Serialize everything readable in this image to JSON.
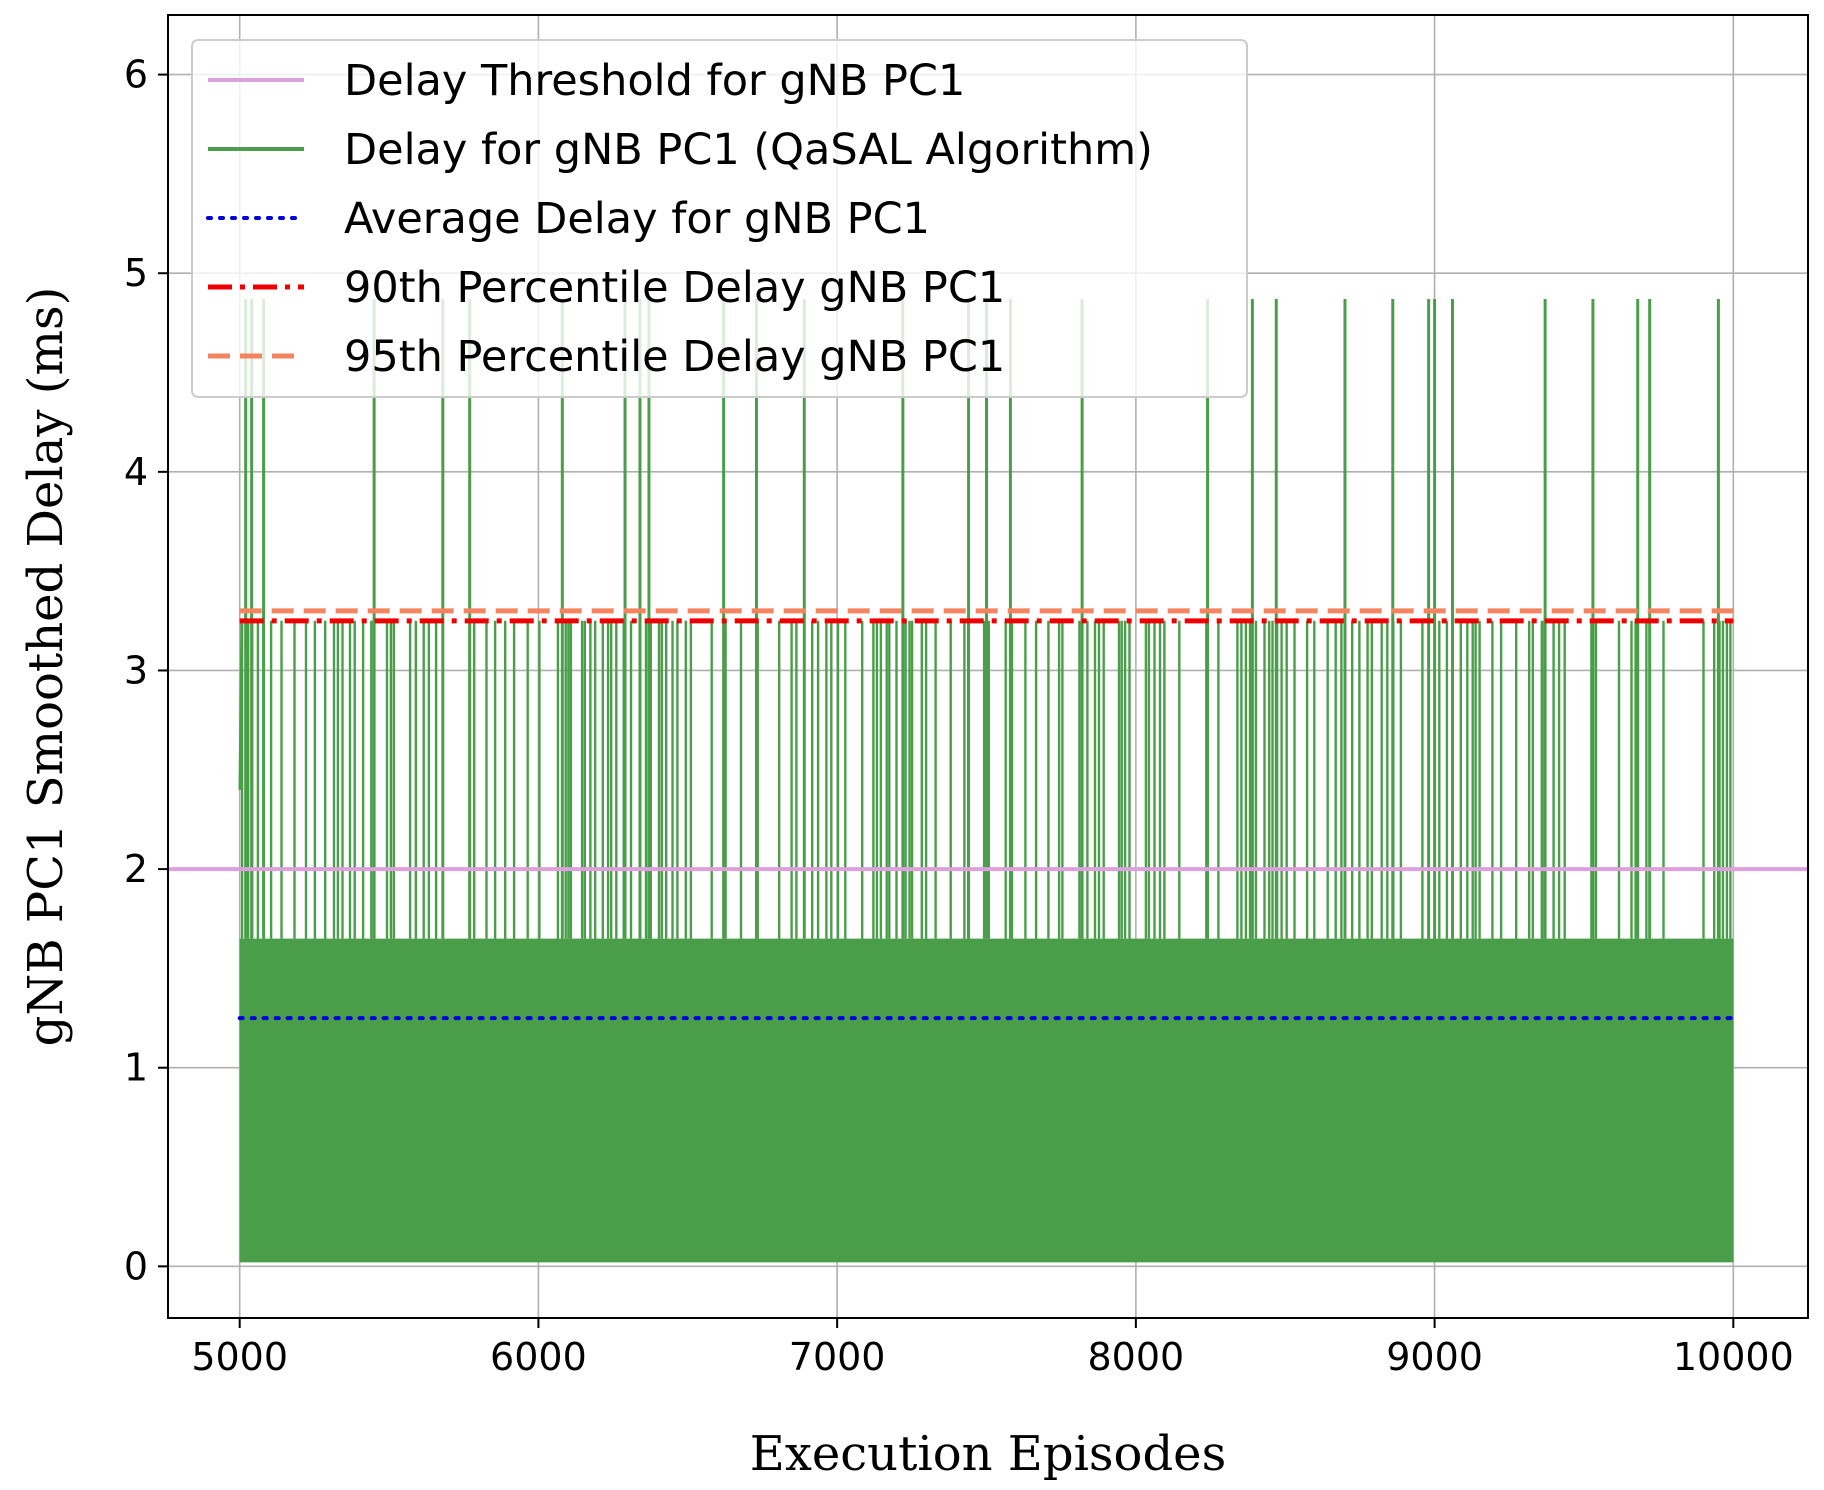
{
  "chart_data": {
    "type": "line",
    "xlabel": "Execution Episodes",
    "ylabel": "gNB PC1 Smoothed Delay (ms)",
    "xlim": [
      4760,
      10250
    ],
    "ylim": [
      -0.26,
      6.3
    ],
    "xticks": [
      5000,
      6000,
      7000,
      8000,
      9000,
      10000
    ],
    "yticks": [
      0,
      1,
      2,
      3,
      4,
      5,
      6
    ],
    "grid": true,
    "legend_position": "top-left",
    "series": [
      {
        "name": "Delay Threshold for gNB PC1",
        "style": "solid",
        "color": "#dda0dd",
        "x": [
          4760,
          10250
        ],
        "y": [
          2,
          2
        ]
      },
      {
        "name": "Delay for gNB PC1 (QaSAL Algorithm)",
        "style": "solid",
        "color": "#4a9e4a",
        "x_range": [
          5000,
          10000
        ],
        "low_band": [
          0.02,
          1.65
        ],
        "mid_level": 3.25,
        "spike_level": 4.87,
        "spike_x": [
          5020,
          5040,
          5080,
          5450,
          5680,
          5770,
          6080,
          6290,
          6340,
          6370,
          6620,
          6730,
          6890,
          7220,
          7440,
          7500,
          7580,
          7820,
          8240,
          8390,
          8470,
          8700,
          8860,
          8980,
          9000,
          9060,
          9370,
          9530,
          9680,
          9720,
          9950
        ]
      },
      {
        "name": "Average Delay for gNB PC1",
        "style": "dotted",
        "color": "#0000dd",
        "x": [
          5000,
          10000
        ],
        "y": [
          1.25,
          1.25
        ]
      },
      {
        "name": "90th Percentile Delay gNB PC1",
        "style": "dashdot",
        "color": "#ee0000",
        "x": [
          5000,
          10000
        ],
        "y": [
          3.25,
          3.25
        ]
      },
      {
        "name": "95th Percentile Delay gNB PC1",
        "style": "dashed",
        "color": "#f4845f",
        "x": [
          5000,
          10000
        ],
        "y": [
          3.3,
          3.3
        ]
      }
    ]
  }
}
